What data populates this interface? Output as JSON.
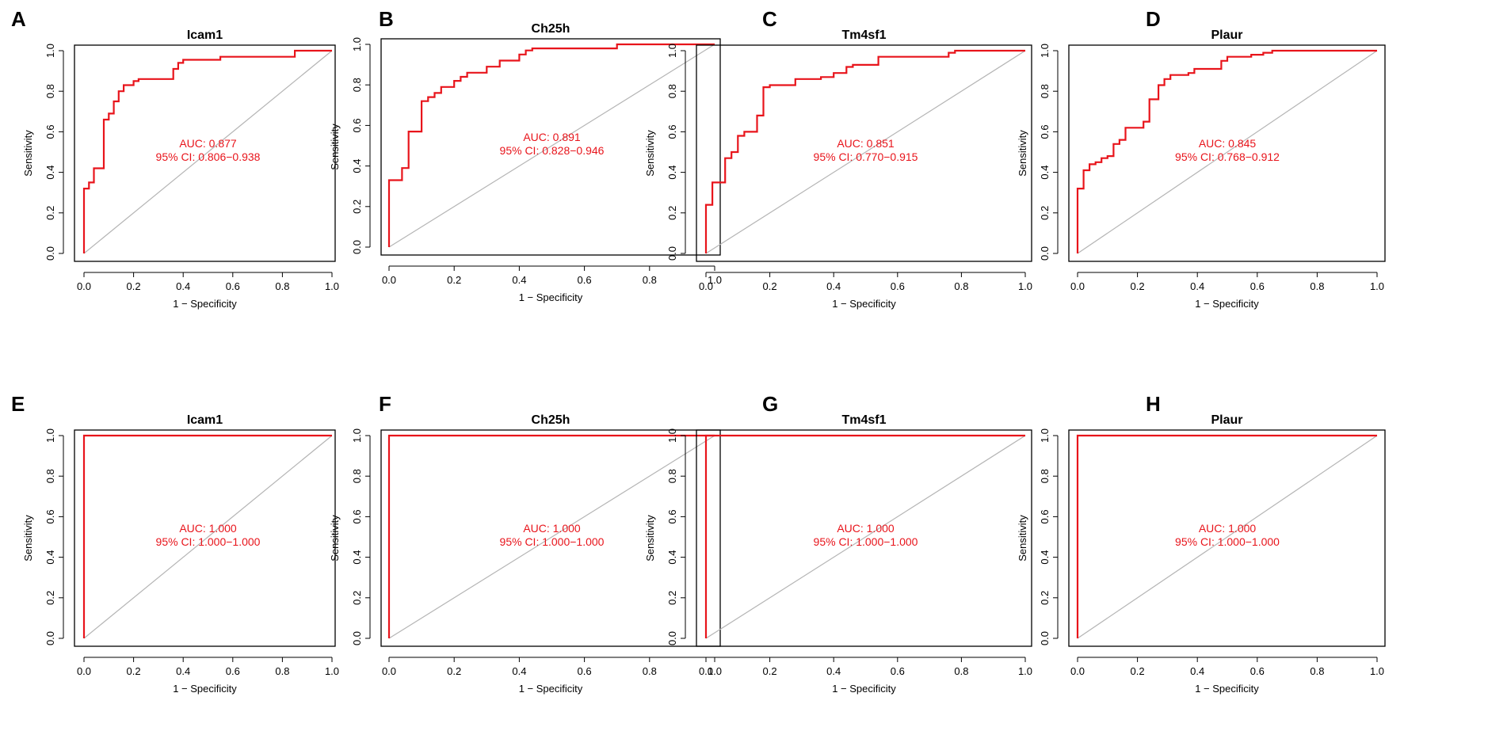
{
  "panels": [
    {
      "letter": "A",
      "title": "Icam1",
      "auc_label": "AUC: 0.877",
      "ci_label": "95% CI: 0.806−0.938"
    },
    {
      "letter": "B",
      "title": "Ch25h",
      "auc_label": "AUC: 0.891",
      "ci_label": "95% CI: 0.828−0.946"
    },
    {
      "letter": "C",
      "title": "Tm4sf1",
      "auc_label": "AUC: 0.851",
      "ci_label": "95% CI: 0.770−0.915"
    },
    {
      "letter": "D",
      "title": "Plaur",
      "auc_label": "AUC: 0.845",
      "ci_label": "95% CI: 0.768−0.912"
    },
    {
      "letter": "E",
      "title": "Icam1",
      "auc_label": "AUC: 1.000",
      "ci_label": "95% CI: 1.000−1.000"
    },
    {
      "letter": "F",
      "title": "Ch25h",
      "auc_label": "AUC: 1.000",
      "ci_label": "95% CI: 1.000−1.000"
    },
    {
      "letter": "G",
      "title": "Tm4sf1",
      "auc_label": "AUC: 1.000",
      "ci_label": "95% CI: 1.000−1.000"
    },
    {
      "letter": "H",
      "title": "Plaur",
      "auc_label": "AUC: 1.000",
      "ci_label": "95% CI: 1.000−1.000"
    }
  ],
  "colors": {
    "curve": "#e8141b",
    "annotation": "#e8141b",
    "diagonal": "#b4b4b4",
    "axis": "#000000"
  },
  "chart_data": [
    {
      "type": "line",
      "panel": "A",
      "title": "Icam1",
      "xlabel": "1 − Specificity",
      "ylabel": "Sensitivity",
      "xlim": [
        0,
        1
      ],
      "ylim": [
        0,
        1
      ],
      "ticks": [
        "0.0",
        "0.2",
        "0.4",
        "0.6",
        "0.8",
        "1.0"
      ],
      "annotations": [
        "AUC: 0.877",
        "95% CI: 0.806−0.938"
      ],
      "series": [
        {
          "name": "ROC",
          "x": [
            0,
            0,
            0.02,
            0.02,
            0.04,
            0.04,
            0.08,
            0.08,
            0.1,
            0.1,
            0.12,
            0.12,
            0.14,
            0.14,
            0.16,
            0.16,
            0.2,
            0.2,
            0.22,
            0.22,
            0.24,
            0.24,
            0.36,
            0.36,
            0.38,
            0.38,
            0.4,
            0.4,
            0.55,
            0.55,
            0.85,
            0.85,
            1.0
          ],
          "y": [
            0,
            0.32,
            0.32,
            0.35,
            0.35,
            0.42,
            0.42,
            0.66,
            0.66,
            0.69,
            0.69,
            0.75,
            0.75,
            0.8,
            0.8,
            0.83,
            0.83,
            0.85,
            0.85,
            0.86,
            0.86,
            0.86,
            0.86,
            0.91,
            0.91,
            0.94,
            0.94,
            0.955,
            0.955,
            0.97,
            0.97,
            1.0,
            1.0
          ]
        }
      ]
    },
    {
      "type": "line",
      "panel": "B",
      "title": "Ch25h",
      "xlabel": "1 − Specificity",
      "ylabel": "Sensitivity",
      "xlim": [
        0,
        1
      ],
      "ylim": [
        0,
        1
      ],
      "ticks": [
        "0.0",
        "0.2",
        "0.4",
        "0.6",
        "0.8",
        "1.0"
      ],
      "annotations": [
        "AUC: 0.891",
        "95% CI: 0.828−0.946"
      ],
      "series": [
        {
          "name": "ROC",
          "x": [
            0,
            0,
            0.04,
            0.04,
            0.06,
            0.06,
            0.1,
            0.1,
            0.12,
            0.12,
            0.14,
            0.14,
            0.16,
            0.16,
            0.2,
            0.2,
            0.22,
            0.22,
            0.24,
            0.24,
            0.26,
            0.26,
            0.3,
            0.3,
            0.34,
            0.34,
            0.4,
            0.4,
            0.42,
            0.42,
            0.44,
            0.44,
            0.46,
            0.46,
            0.7,
            0.7,
            1.0
          ],
          "y": [
            0,
            0.33,
            0.33,
            0.39,
            0.39,
            0.57,
            0.57,
            0.72,
            0.72,
            0.74,
            0.74,
            0.76,
            0.76,
            0.79,
            0.79,
            0.82,
            0.82,
            0.84,
            0.84,
            0.86,
            0.86,
            0.86,
            0.86,
            0.89,
            0.89,
            0.92,
            0.92,
            0.95,
            0.95,
            0.97,
            0.97,
            0.98,
            0.98,
            0.98,
            0.98,
            1.0,
            1.0
          ]
        }
      ]
    },
    {
      "type": "line",
      "panel": "C",
      "title": "Tm4sf1",
      "xlabel": "1 − Specificity",
      "ylabel": "Sensitivity",
      "xlim": [
        0,
        1
      ],
      "ylim": [
        0,
        1
      ],
      "ticks": [
        "0.0",
        "0.2",
        "0.4",
        "0.6",
        "0.8",
        "1.0"
      ],
      "annotations": [
        "AUC: 0.851",
        "95% CI: 0.770−0.915"
      ],
      "series": [
        {
          "name": "ROC",
          "x": [
            0,
            0,
            0.02,
            0.02,
            0.06,
            0.06,
            0.08,
            0.08,
            0.1,
            0.1,
            0.12,
            0.12,
            0.14,
            0.14,
            0.16,
            0.16,
            0.18,
            0.18,
            0.2,
            0.2,
            0.28,
            0.28,
            0.36,
            0.36,
            0.4,
            0.4,
            0.44,
            0.44,
            0.46,
            0.46,
            0.54,
            0.54,
            0.76,
            0.76,
            0.78,
            0.78,
            1.0
          ],
          "y": [
            0,
            0.24,
            0.24,
            0.35,
            0.35,
            0.47,
            0.47,
            0.5,
            0.5,
            0.58,
            0.58,
            0.6,
            0.6,
            0.6,
            0.6,
            0.68,
            0.68,
            0.82,
            0.82,
            0.83,
            0.83,
            0.86,
            0.86,
            0.87,
            0.87,
            0.89,
            0.89,
            0.92,
            0.92,
            0.93,
            0.93,
            0.97,
            0.97,
            0.99,
            0.99,
            1.0,
            1.0
          ]
        }
      ]
    },
    {
      "type": "line",
      "panel": "D",
      "title": "Plaur",
      "xlabel": "1 − Specificity",
      "ylabel": "Sensitivity",
      "xlim": [
        0,
        1
      ],
      "ylim": [
        0,
        1
      ],
      "ticks": [
        "0.0",
        "0.2",
        "0.4",
        "0.6",
        "0.8",
        "1.0"
      ],
      "annotations": [
        "AUC: 0.845",
        "95% CI: 0.768−0.912"
      ],
      "series": [
        {
          "name": "ROC",
          "x": [
            0,
            0,
            0.02,
            0.02,
            0.04,
            0.04,
            0.06,
            0.06,
            0.08,
            0.08,
            0.1,
            0.1,
            0.12,
            0.12,
            0.14,
            0.14,
            0.16,
            0.16,
            0.18,
            0.18,
            0.22,
            0.22,
            0.24,
            0.24,
            0.27,
            0.27,
            0.29,
            0.29,
            0.31,
            0.31,
            0.33,
            0.33,
            0.37,
            0.37,
            0.39,
            0.39,
            0.48,
            0.48,
            0.5,
            0.5,
            0.58,
            0.58,
            0.62,
            0.62,
            0.65,
            0.65,
            1.0
          ],
          "y": [
            0,
            0.32,
            0.32,
            0.41,
            0.41,
            0.44,
            0.44,
            0.45,
            0.45,
            0.47,
            0.47,
            0.48,
            0.48,
            0.54,
            0.54,
            0.56,
            0.56,
            0.62,
            0.62,
            0.62,
            0.62,
            0.65,
            0.65,
            0.76,
            0.76,
            0.83,
            0.83,
            0.86,
            0.86,
            0.88,
            0.88,
            0.88,
            0.88,
            0.89,
            0.89,
            0.91,
            0.91,
            0.95,
            0.95,
            0.97,
            0.97,
            0.98,
            0.98,
            0.99,
            0.99,
            1.0,
            1.0
          ]
        }
      ]
    },
    {
      "type": "line",
      "panel": "E",
      "title": "Icam1",
      "xlabel": "1 − Specificity",
      "ylabel": "Sensitivity",
      "xlim": [
        0,
        1
      ],
      "ylim": [
        0,
        1
      ],
      "ticks": [
        "0.0",
        "0.2",
        "0.4",
        "0.6",
        "0.8",
        "1.0"
      ],
      "annotations": [
        "AUC: 1.000",
        "95% CI: 1.000−1.000"
      ],
      "series": [
        {
          "name": "ROC",
          "x": [
            0,
            0,
            1.0
          ],
          "y": [
            0,
            1.0,
            1.0
          ]
        }
      ]
    },
    {
      "type": "line",
      "panel": "F",
      "title": "Ch25h",
      "xlabel": "1 − Specificity",
      "ylabel": "Sensitivity",
      "xlim": [
        0,
        1
      ],
      "ylim": [
        0,
        1
      ],
      "ticks": [
        "0.0",
        "0.2",
        "0.4",
        "0.6",
        "0.8",
        "1.0"
      ],
      "annotations": [
        "AUC: 1.000",
        "95% CI: 1.000−1.000"
      ],
      "series": [
        {
          "name": "ROC",
          "x": [
            0,
            0,
            1.0
          ],
          "y": [
            0,
            1.0,
            1.0
          ]
        }
      ]
    },
    {
      "type": "line",
      "panel": "G",
      "title": "Tm4sf1",
      "xlabel": "1 − Specificity",
      "ylabel": "Sensitivity",
      "xlim": [
        0,
        1
      ],
      "ylim": [
        0,
        1
      ],
      "ticks": [
        "0.0",
        "0.2",
        "0.4",
        "0.6",
        "0.8",
        "1.0"
      ],
      "annotations": [
        "AUC: 1.000",
        "95% CI: 1.000−1.000"
      ],
      "series": [
        {
          "name": "ROC",
          "x": [
            0,
            0,
            1.0
          ],
          "y": [
            0,
            1.0,
            1.0
          ]
        }
      ]
    },
    {
      "type": "line",
      "panel": "H",
      "title": "Plaur",
      "xlabel": "1 − Specificity",
      "ylabel": "Sensitivity",
      "xlim": [
        0,
        1
      ],
      "ylim": [
        0,
        1
      ],
      "ticks": [
        "0.0",
        "0.2",
        "0.4",
        "0.6",
        "0.8",
        "1.0"
      ],
      "annotations": [
        "AUC: 1.000",
        "95% CI: 1.000−1.000"
      ],
      "series": [
        {
          "name": "ROC",
          "x": [
            0,
            0,
            1.0
          ],
          "y": [
            0,
            1.0,
            1.0
          ]
        }
      ]
    }
  ]
}
